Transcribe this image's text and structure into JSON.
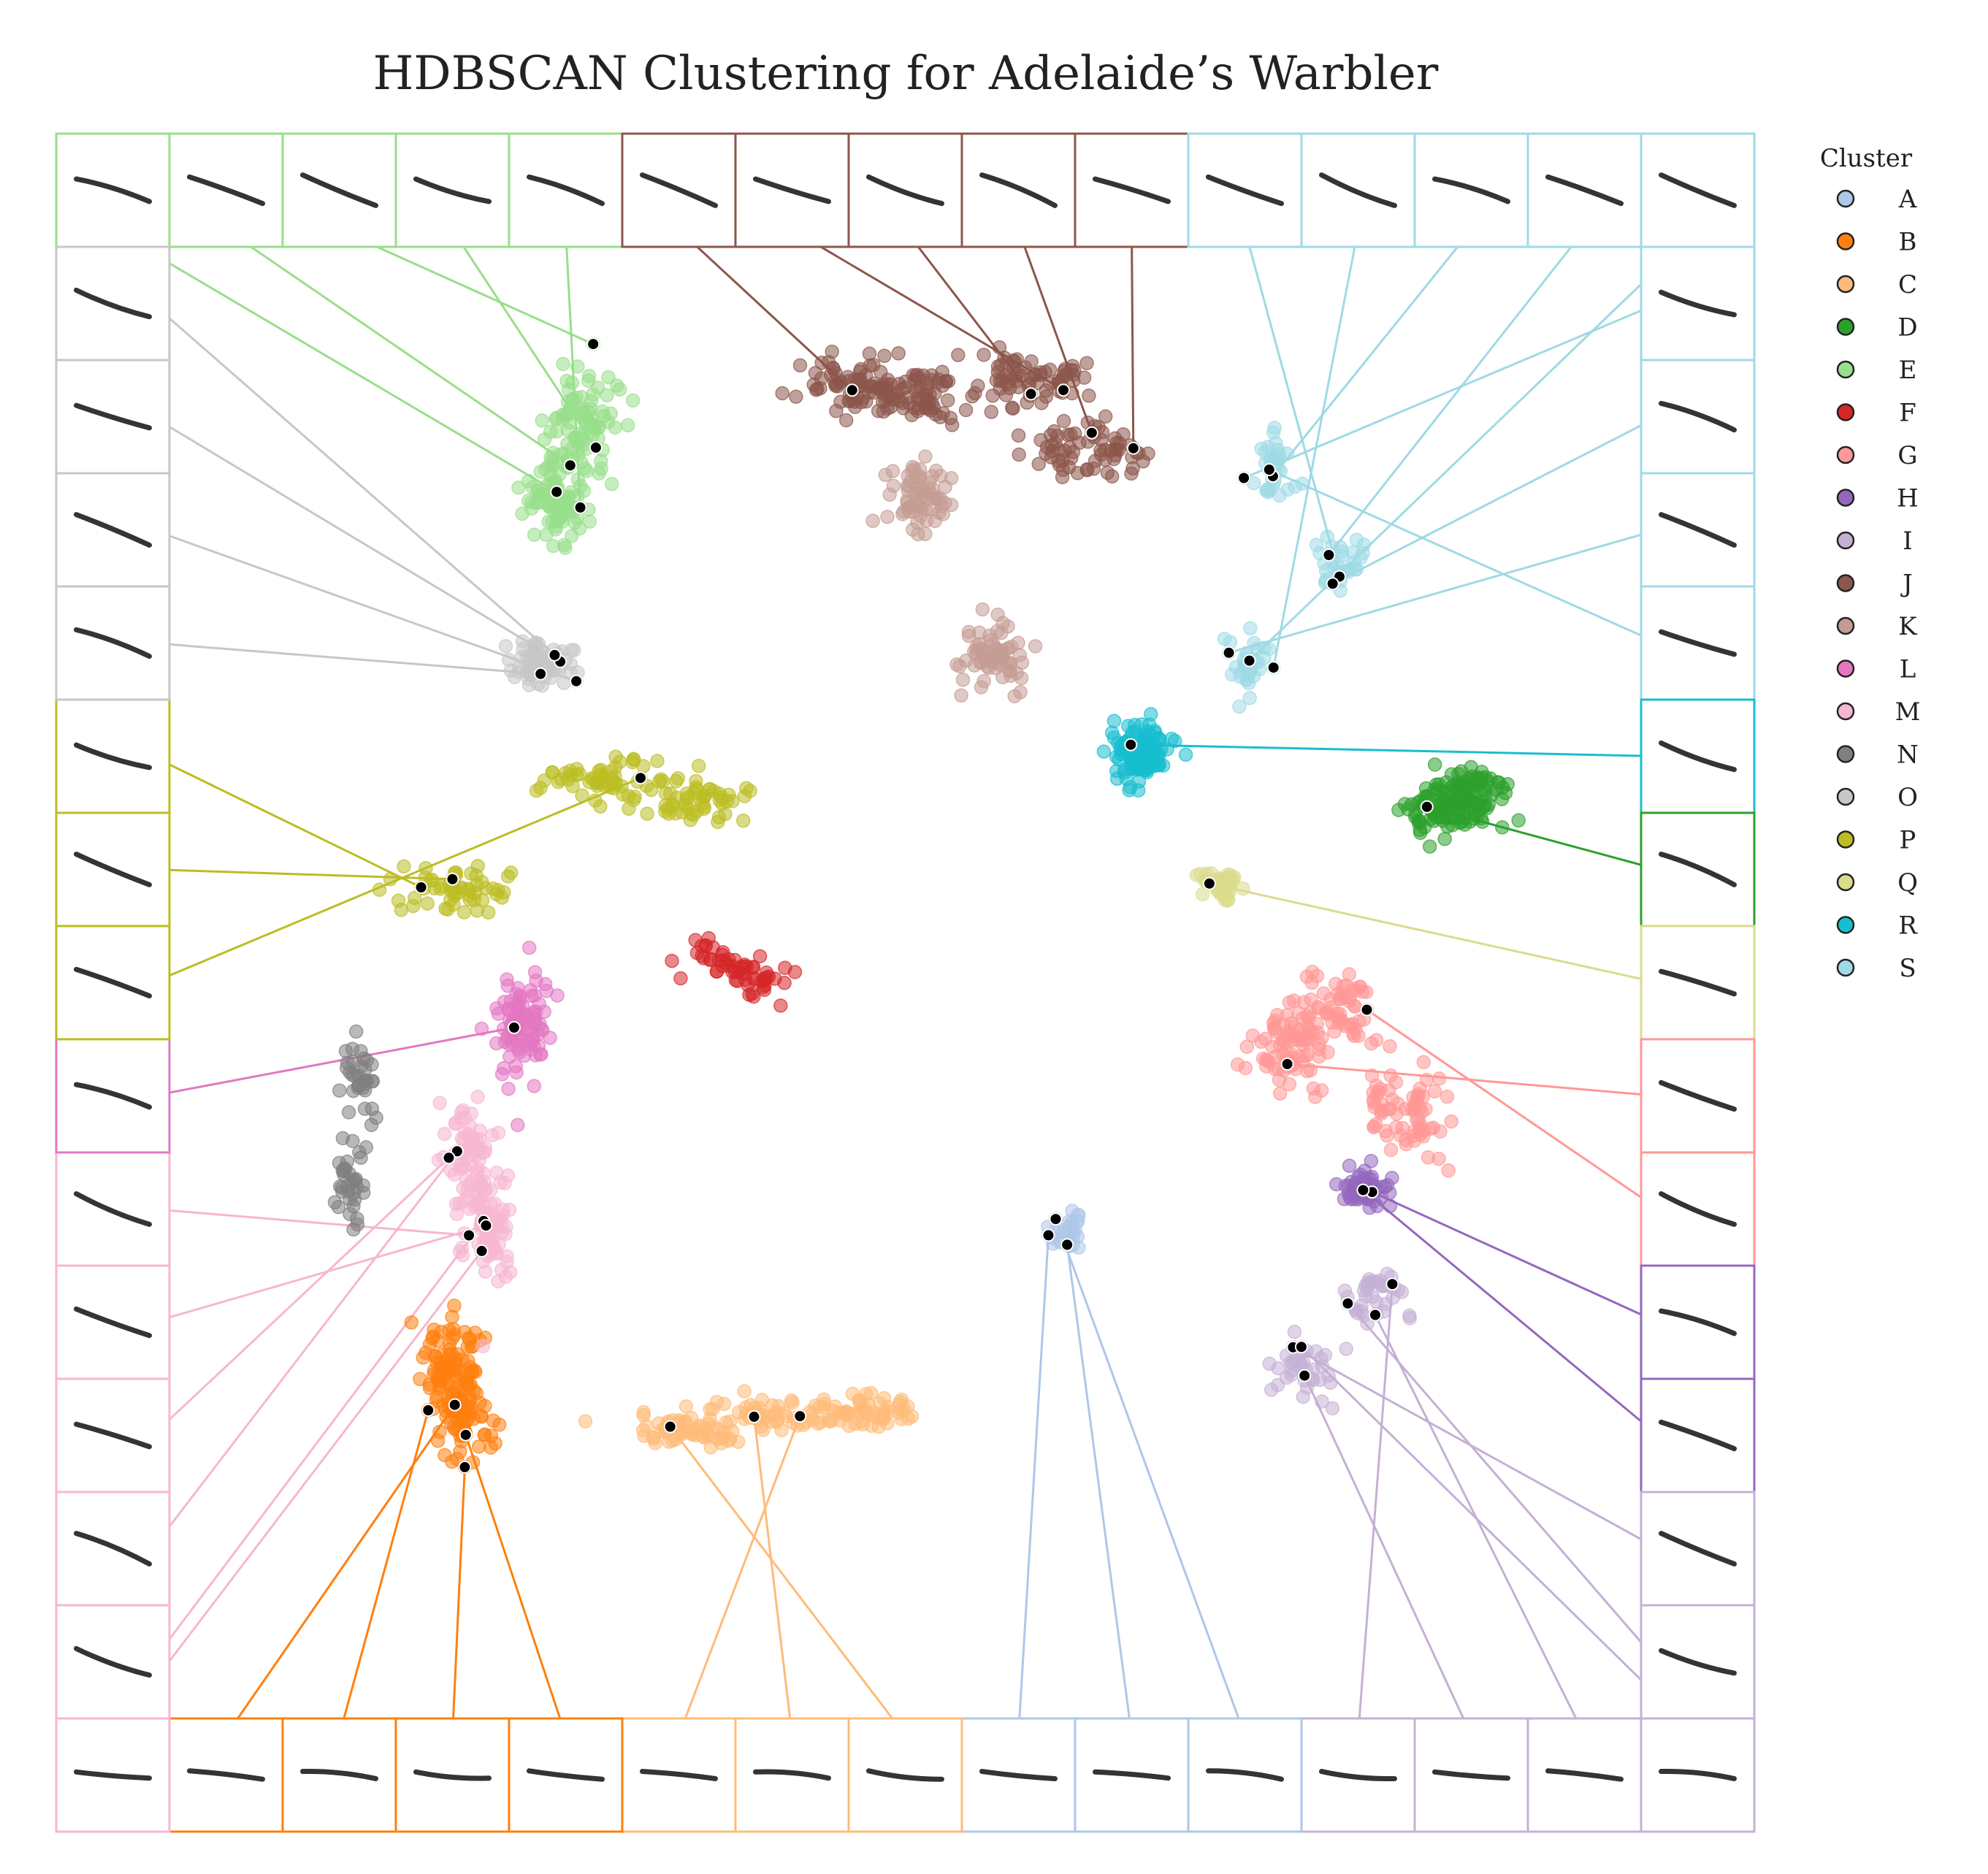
{
  "chart_data": {
    "type": "scatter",
    "title": "HDBSCAN Clustering for Adelaide’s Warbler",
    "xlabel": "",
    "ylabel": "",
    "grid": false,
    "legend": {
      "title": "Cluster",
      "placement": "right"
    },
    "series": [
      {
        "name": "A",
        "color": "#aec7e8",
        "centers": [
          [
            13.5,
            8.6
          ]
        ],
        "spread": [
          0.25,
          0.5
        ],
        "n": 30
      },
      {
        "name": "B",
        "color": "#ff7f0e",
        "centers": [
          [
            4.4,
            5.3
          ],
          [
            4.3,
            6.3
          ]
        ],
        "spread": [
          0.4,
          0.7
        ],
        "n": 160
      },
      {
        "name": "C",
        "color": "#ffbb78",
        "centers": [
          [
            7.8,
            5.1
          ],
          [
            9.0,
            5.4
          ],
          [
            10.4,
            5.5
          ]
        ],
        "spread": [
          0.7,
          0.25
        ],
        "n": 170
      },
      {
        "name": "D",
        "color": "#2ca02c",
        "centers": [
          [
            19.1,
            16.0
          ],
          [
            19.6,
            16.3
          ]
        ],
        "spread": [
          0.45,
          0.45
        ],
        "n": 150
      },
      {
        "name": "E",
        "color": "#98df8a",
        "centers": [
          [
            5.8,
            21.5
          ],
          [
            6.2,
            22.8
          ]
        ],
        "spread": [
          0.45,
          0.8
        ],
        "n": 180
      },
      {
        "name": "F",
        "color": "#d62728",
        "centers": [
          [
            8.2,
            13.4
          ],
          [
            8.9,
            13.0
          ]
        ],
        "spread": [
          0.4,
          0.3
        ],
        "n": 60
      },
      {
        "name": "G",
        "color": "#ff9896",
        "centers": [
          [
            16.8,
            11.8
          ],
          [
            17.6,
            12.5
          ],
          [
            18.6,
            10.8
          ]
        ],
        "spread": [
          0.55,
          0.7
        ],
        "n": 210
      },
      {
        "name": "H",
        "color": "#9467bd",
        "centers": [
          [
            18.0,
            9.4
          ]
        ],
        "spread": [
          0.35,
          0.3
        ],
        "n": 60
      },
      {
        "name": "I",
        "color": "#c5b0d5",
        "centers": [
          [
            17.0,
            6.3
          ],
          [
            18.1,
            7.5
          ]
        ],
        "spread": [
          0.4,
          0.55
        ],
        "n": 80
      },
      {
        "name": "J",
        "color": "#8c564b",
        "centers": [
          [
            10.3,
            23.5
          ],
          [
            12.9,
            23.6
          ],
          [
            13.8,
            22.4
          ],
          [
            11.2,
            23.3
          ]
        ],
        "spread": [
          0.8,
          0.45
        ],
        "n": 280
      },
      {
        "name": "K",
        "color": "#c49c94",
        "centers": [
          [
            12.4,
            18.7
          ],
          [
            11.3,
            21.5
          ]
        ],
        "spread": [
          0.45,
          0.65
        ],
        "n": 140
      },
      {
        "name": "L",
        "color": "#e377c2",
        "centers": [
          [
            5.3,
            12.3
          ]
        ],
        "spread": [
          0.35,
          0.8
        ],
        "n": 100
      },
      {
        "name": "M",
        "color": "#f7b6d2",
        "centers": [
          [
            4.8,
            8.6
          ],
          [
            4.6,
            10.0
          ]
        ],
        "spread": [
          0.35,
          0.9
        ],
        "n": 160
      },
      {
        "name": "N",
        "color": "#7f7f7f",
        "centers": [
          [
            2.9,
            11.3
          ],
          [
            2.7,
            9.5
          ]
        ],
        "spread": [
          0.2,
          0.6
        ],
        "n": 70
      },
      {
        "name": "O",
        "color": "#c7c7c7",
        "centers": [
          [
            5.6,
            18.6
          ]
        ],
        "spread": [
          0.4,
          0.35
        ],
        "n": 70
      },
      {
        "name": "P",
        "color": "#bcbd22",
        "centers": [
          [
            6.5,
            16.6
          ],
          [
            4.3,
            14.6
          ],
          [
            7.9,
            16.2
          ]
        ],
        "spread": [
          0.8,
          0.35
        ],
        "n": 170
      },
      {
        "name": "Q",
        "color": "#dbdb8d",
        "centers": [
          [
            15.8,
            14.7
          ]
        ],
        "spread": [
          0.3,
          0.25
        ],
        "n": 40
      },
      {
        "name": "R",
        "color": "#17becf",
        "centers": [
          [
            14.6,
            17.0
          ]
        ],
        "spread": [
          0.4,
          0.45
        ],
        "n": 130
      },
      {
        "name": "S",
        "color": "#9edae5",
        "centers": [
          [
            16.6,
            22.0
          ],
          [
            17.6,
            20.4
          ],
          [
            16.2,
            18.6
          ]
        ],
        "spread": [
          0.35,
          0.45
        ],
        "n": 100
      }
    ],
    "exemplar_panels": [
      {
        "cluster": "E",
        "count": 5
      },
      {
        "cluster": "J",
        "count": 5
      },
      {
        "cluster": "S",
        "count": 9
      },
      {
        "cluster": "O",
        "count": 4
      },
      {
        "cluster": "P",
        "count": 3
      },
      {
        "cluster": "L",
        "count": 1
      },
      {
        "cluster": "M",
        "count": 6
      },
      {
        "cluster": "B",
        "count": 4
      },
      {
        "cluster": "C",
        "count": 3
      },
      {
        "cluster": "A",
        "count": 3
      },
      {
        "cluster": "I",
        "count": 5
      },
      {
        "cluster": "H",
        "count": 2
      },
      {
        "cluster": "G",
        "count": 2
      },
      {
        "cluster": "Q",
        "count": 1
      },
      {
        "cluster": "D",
        "count": 1
      },
      {
        "cluster": "R",
        "count": 1
      }
    ]
  }
}
